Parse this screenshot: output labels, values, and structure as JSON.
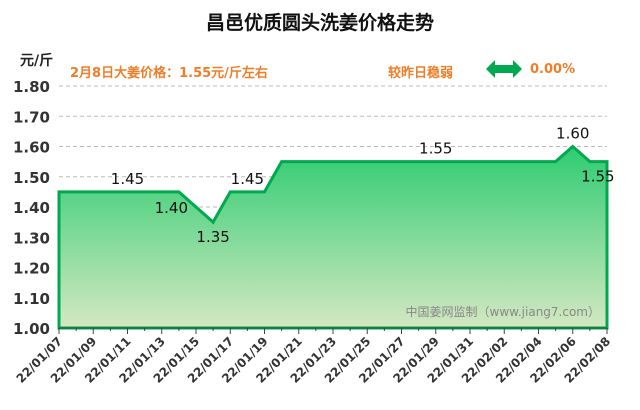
{
  "title": "昌邑优质圆头洗姜价格走势",
  "unit": "元/斤",
  "price_note": "2月8日大姜价格：1.55元/斤左右",
  "compare_label": "较昨日稳弱",
  "change_icon": "left-right-arrow-icon",
  "change_pct": "0.00%",
  "colors": {
    "line": "#00a94f",
    "fill_top": "#2ecc71",
    "fill_bottom": "#d4e8c2",
    "accent": "#f07d28"
  },
  "chart_data": {
    "type": "area",
    "title": "昌邑优质圆头洗姜价格走势",
    "ylabel": "元/斤",
    "ylim": [
      1.0,
      1.8
    ],
    "yticks": [
      "1.00",
      "1.10",
      "1.20",
      "1.30",
      "1.40",
      "1.50",
      "1.60",
      "1.70",
      "1.80"
    ],
    "grid": true,
    "xticks": [
      "22/01/07",
      "22/01/09",
      "22/01/11",
      "22/01/13",
      "22/01/15",
      "22/01/17",
      "22/01/19",
      "22/01/21",
      "22/01/23",
      "22/01/25",
      "22/01/27",
      "22/01/29",
      "22/01/31",
      "22/02/02",
      "22/02/04",
      "22/02/06",
      "22/02/08"
    ],
    "x": [
      "22/01/07",
      "22/01/08",
      "22/01/09",
      "22/01/10",
      "22/01/11",
      "22/01/12",
      "22/01/13",
      "22/01/14",
      "22/01/15",
      "22/01/16",
      "22/01/17",
      "22/01/18",
      "22/01/19",
      "22/01/20",
      "22/01/21",
      "22/01/22",
      "22/01/23",
      "22/01/24",
      "22/01/25",
      "22/01/26",
      "22/01/27",
      "22/01/28",
      "22/01/29",
      "22/01/30",
      "22/01/31",
      "22/02/01",
      "22/02/02",
      "22/02/03",
      "22/02/04",
      "22/02/05",
      "22/02/06",
      "22/02/07",
      "22/02/08"
    ],
    "values": [
      1.45,
      1.45,
      1.45,
      1.45,
      1.45,
      1.45,
      1.45,
      1.45,
      1.4,
      1.35,
      1.45,
      1.45,
      1.45,
      1.55,
      1.55,
      1.55,
      1.55,
      1.55,
      1.55,
      1.55,
      1.55,
      1.55,
      1.55,
      1.55,
      1.55,
      1.55,
      1.55,
      1.55,
      1.55,
      1.55,
      1.6,
      1.55,
      1.55
    ],
    "data_labels": [
      {
        "x": "22/01/11",
        "text": "1.45",
        "pos": "above"
      },
      {
        "x": "22/01/15",
        "text": "1.40",
        "pos": "left"
      },
      {
        "x": "22/01/16",
        "text": "1.35",
        "pos": "below"
      },
      {
        "x": "22/01/18",
        "text": "1.45",
        "pos": "above"
      },
      {
        "x": "22/01/29",
        "text": "1.55",
        "pos": "above"
      },
      {
        "x": "22/02/06",
        "text": "1.60",
        "pos": "above"
      },
      {
        "x": "22/02/07",
        "text": "1.55",
        "pos": "below"
      }
    ],
    "watermark": "中国姜网监制（www.jiang7.com）"
  }
}
